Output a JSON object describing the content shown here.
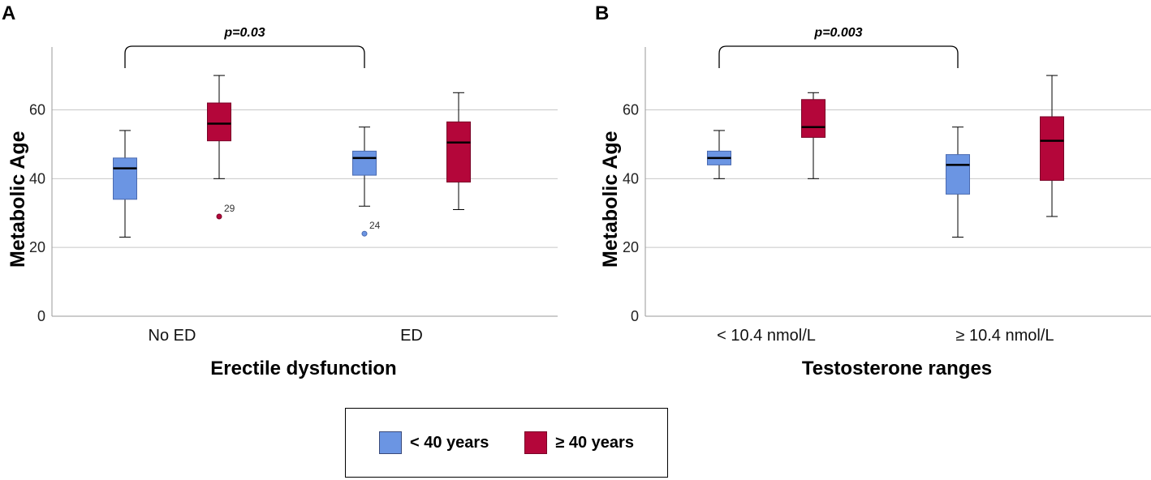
{
  "colors": {
    "young": "#6b95e3",
    "old": "#b4063a",
    "young_edge": "#4a6ab0",
    "old_edge": "#7a0428"
  },
  "legend": {
    "items": [
      {
        "label": "< 40 years",
        "color": "#6b95e3"
      },
      {
        "label": "≥ 40 years",
        "color": "#b4063a"
      }
    ]
  },
  "chart_data": [
    {
      "type": "box",
      "panel": "A",
      "ylabel": "Metabolic Age",
      "xlabel": "Erectile dysfunction",
      "ylim": [
        0,
        75
      ],
      "yticks": [
        0,
        20,
        40,
        60
      ],
      "categories": [
        "No ED",
        "ED"
      ],
      "significance": {
        "label": "p=0.03",
        "between": [
          "No ED",
          "ED"
        ]
      },
      "series": [
        {
          "name": "< 40 years",
          "boxes": [
            {
              "min": 23,
              "q1": 34,
              "median": 43,
              "q3": 46,
              "max": 54,
              "outliers": []
            },
            {
              "min": 32,
              "q1": 41,
              "median": 46,
              "q3": 48,
              "max": 55,
              "outliers": [
                {
                  "value": 24,
                  "label": "24"
                }
              ]
            }
          ]
        },
        {
          "name": "≥ 40 years",
          "boxes": [
            {
              "min": 40,
              "q1": 51,
              "median": 56,
              "q3": 62,
              "max": 70,
              "outliers": [
                {
                  "value": 29,
                  "label": "29"
                }
              ]
            },
            {
              "min": 31,
              "q1": 39,
              "median": 50.5,
              "q3": 56.5,
              "max": 65,
              "outliers": []
            }
          ]
        }
      ]
    },
    {
      "type": "box",
      "panel": "B",
      "ylabel": "Metabolic Age",
      "xlabel": "Testosterone ranges",
      "ylim": [
        0,
        75
      ],
      "yticks": [
        0,
        20,
        40,
        60
      ],
      "categories": [
        "< 10.4 nmol/L",
        "≥ 10.4 nmol/L"
      ],
      "significance": {
        "label": "p=0.003",
        "between": [
          "< 10.4 nmol/L",
          "≥ 10.4 nmol/L"
        ]
      },
      "series": [
        {
          "name": "< 40 years",
          "boxes": [
            {
              "min": 40,
              "q1": 44,
              "median": 46,
              "q3": 48,
              "max": 54,
              "outliers": []
            },
            {
              "min": 23,
              "q1": 35.5,
              "median": 44,
              "q3": 47,
              "max": 55,
              "outliers": []
            }
          ]
        },
        {
          "name": "≥ 40 years",
          "boxes": [
            {
              "min": 40,
              "q1": 52,
              "median": 55,
              "q3": 63,
              "max": 65,
              "outliers": []
            },
            {
              "min": 29,
              "q1": 39.5,
              "median": 51,
              "q3": 58,
              "max": 70,
              "outliers": []
            }
          ]
        }
      ]
    }
  ]
}
